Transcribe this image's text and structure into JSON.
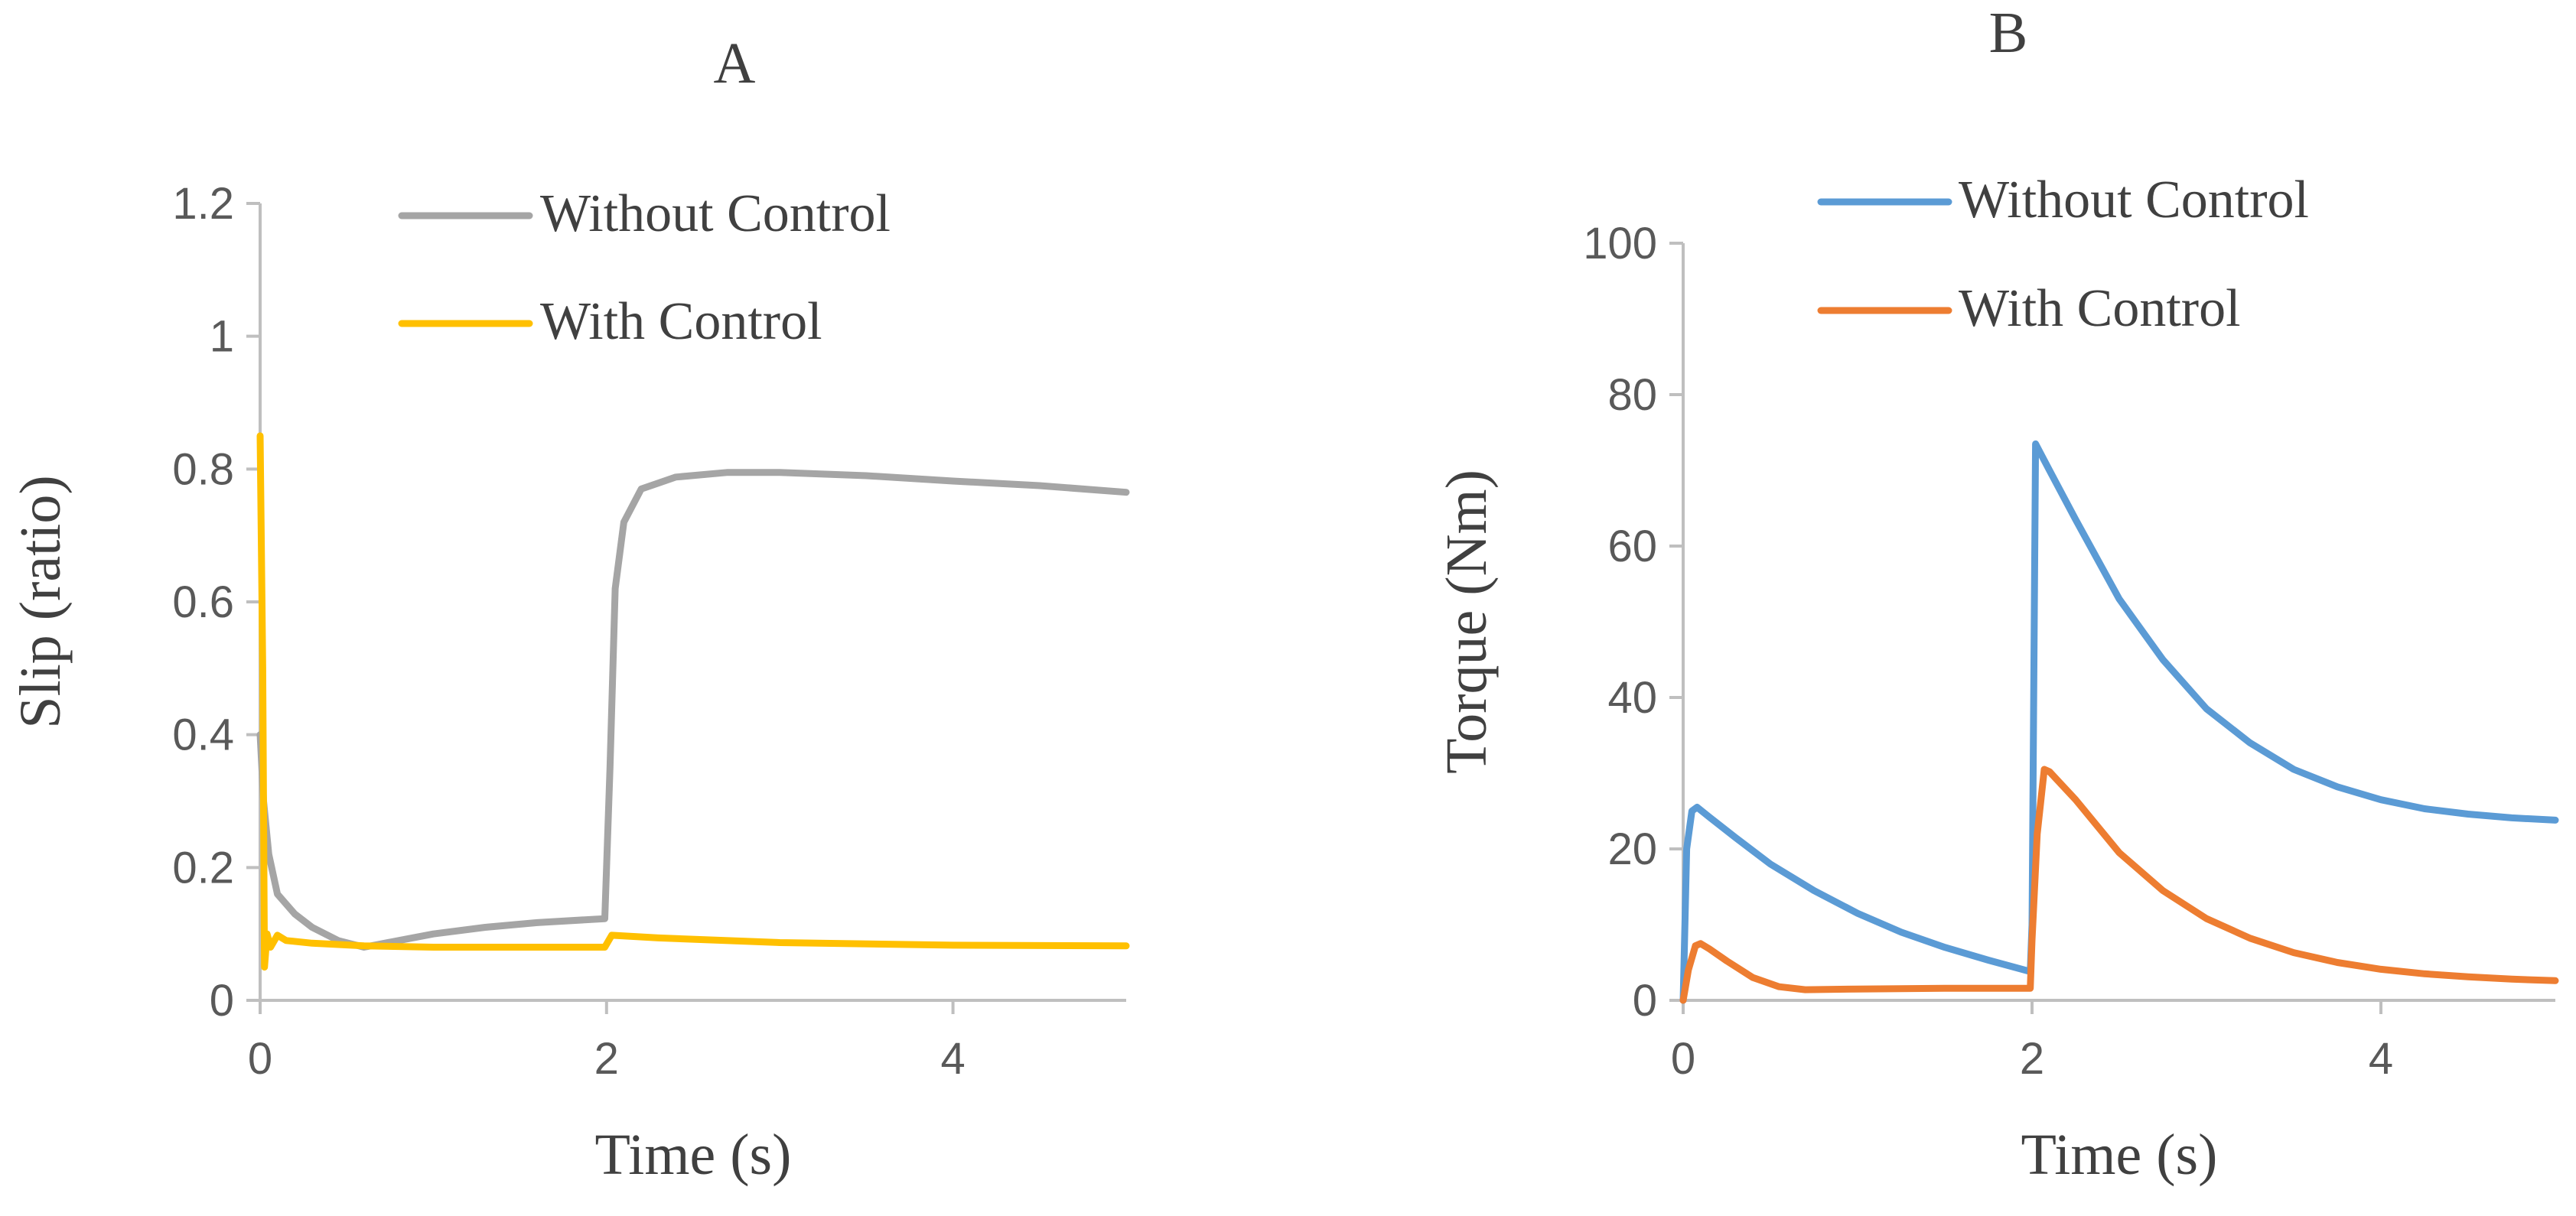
{
  "chart_data": [
    {
      "type": "line",
      "panel_label": "A",
      "title": "",
      "xlabel": "Time (s)",
      "ylabel": "Slip (ratio)",
      "xlim": [
        0,
        5
      ],
      "ylim": [
        0,
        1.2
      ],
      "x_ticks": [
        0,
        2,
        4
      ],
      "x_tick_labels": [
        "0",
        "2",
        "4"
      ],
      "y_ticks": [
        0,
        0.2,
        0.4,
        0.6,
        0.8,
        1.0,
        1.2
      ],
      "y_tick_labels": [
        "0",
        "0.2",
        "0.4",
        "0.6",
        "0.8",
        "1",
        "1.2"
      ],
      "grid": false,
      "legend_position": "top-center",
      "series": [
        {
          "name": "Without Control",
          "color": "#a5a5a5",
          "points": [
            [
              0,
              0.4
            ],
            [
              0.02,
              0.3
            ],
            [
              0.05,
              0.22
            ],
            [
              0.1,
              0.16
            ],
            [
              0.2,
              0.13
            ],
            [
              0.3,
              0.11
            ],
            [
              0.45,
              0.09
            ],
            [
              0.6,
              0.08
            ],
            [
              0.8,
              0.09
            ],
            [
              1.0,
              0.1
            ],
            [
              1.3,
              0.11
            ],
            [
              1.6,
              0.117
            ],
            [
              1.99,
              0.123
            ],
            [
              2.02,
              0.35
            ],
            [
              2.05,
              0.62
            ],
            [
              2.1,
              0.72
            ],
            [
              2.2,
              0.77
            ],
            [
              2.4,
              0.788
            ],
            [
              2.7,
              0.795
            ],
            [
              3.0,
              0.795
            ],
            [
              3.5,
              0.79
            ],
            [
              4.0,
              0.782
            ],
            [
              4.5,
              0.775
            ],
            [
              5.0,
              0.765
            ]
          ]
        },
        {
          "name": "With Control",
          "color": "#ffc000",
          "points": [
            [
              0,
              0.85
            ],
            [
              0.015,
              0.5
            ],
            [
              0.025,
              0.05
            ],
            [
              0.04,
              0.1
            ],
            [
              0.06,
              0.08
            ],
            [
              0.1,
              0.098
            ],
            [
              0.15,
              0.09
            ],
            [
              0.3,
              0.086
            ],
            [
              0.6,
              0.082
            ],
            [
              1.0,
              0.08
            ],
            [
              1.5,
              0.08
            ],
            [
              1.99,
              0.08
            ],
            [
              2.03,
              0.098
            ],
            [
              2.3,
              0.094
            ],
            [
              3.0,
              0.087
            ],
            [
              4.0,
              0.083
            ],
            [
              5.0,
              0.082
            ]
          ]
        }
      ]
    },
    {
      "type": "line",
      "panel_label": "B",
      "title": "",
      "xlabel": "Time (s)",
      "ylabel": "Torque (Nm)",
      "xlim": [
        0,
        5
      ],
      "ylim": [
        0,
        100
      ],
      "x_ticks": [
        0,
        2,
        4
      ],
      "x_tick_labels": [
        "0",
        "2",
        "4"
      ],
      "y_ticks": [
        0,
        20,
        40,
        60,
        80,
        100
      ],
      "y_tick_labels": [
        "0",
        "20",
        "40",
        "60",
        "80",
        "100"
      ],
      "grid": false,
      "legend_position": "top-left",
      "series": [
        {
          "name": "Without Control",
          "color": "#5b9bd5",
          "points": [
            [
              0,
              0
            ],
            [
              0.02,
              20
            ],
            [
              0.05,
              25
            ],
            [
              0.08,
              25.5
            ],
            [
              0.15,
              24.2
            ],
            [
              0.3,
              21.5
            ],
            [
              0.5,
              18
            ],
            [
              0.75,
              14.5
            ],
            [
              1.0,
              11.5
            ],
            [
              1.25,
              9
            ],
            [
              1.5,
              7
            ],
            [
              1.75,
              5.3
            ],
            [
              1.99,
              3.8
            ],
            [
              2.0,
              10
            ],
            [
              2.02,
              73.5
            ],
            [
              2.1,
              70
            ],
            [
              2.25,
              63.5
            ],
            [
              2.5,
              53
            ],
            [
              2.75,
              45
            ],
            [
              3.0,
              38.5
            ],
            [
              3.25,
              34
            ],
            [
              3.5,
              30.5
            ],
            [
              3.75,
              28.2
            ],
            [
              4.0,
              26.5
            ],
            [
              4.25,
              25.3
            ],
            [
              4.5,
              24.6
            ],
            [
              4.75,
              24.1
            ],
            [
              5.0,
              23.8
            ]
          ]
        },
        {
          "name": "With Control",
          "color": "#ed7d31",
          "points": [
            [
              0,
              0
            ],
            [
              0.03,
              4
            ],
            [
              0.07,
              7.2
            ],
            [
              0.1,
              7.5
            ],
            [
              0.15,
              6.8
            ],
            [
              0.25,
              5.2
            ],
            [
              0.4,
              3
            ],
            [
              0.55,
              1.8
            ],
            [
              0.7,
              1.4
            ],
            [
              1.0,
              1.5
            ],
            [
              1.5,
              1.6
            ],
            [
              1.99,
              1.6
            ],
            [
              2.0,
              8
            ],
            [
              2.03,
              22
            ],
            [
              2.07,
              30.5
            ],
            [
              2.1,
              30.2
            ],
            [
              2.25,
              26.5
            ],
            [
              2.5,
              19.5
            ],
            [
              2.75,
              14.5
            ],
            [
              3.0,
              10.8
            ],
            [
              3.25,
              8.2
            ],
            [
              3.5,
              6.3
            ],
            [
              3.75,
              5
            ],
            [
              4.0,
              4.1
            ],
            [
              4.25,
              3.5
            ],
            [
              4.5,
              3.1
            ],
            [
              4.75,
              2.8
            ],
            [
              5.0,
              2.6
            ]
          ]
        }
      ]
    }
  ]
}
